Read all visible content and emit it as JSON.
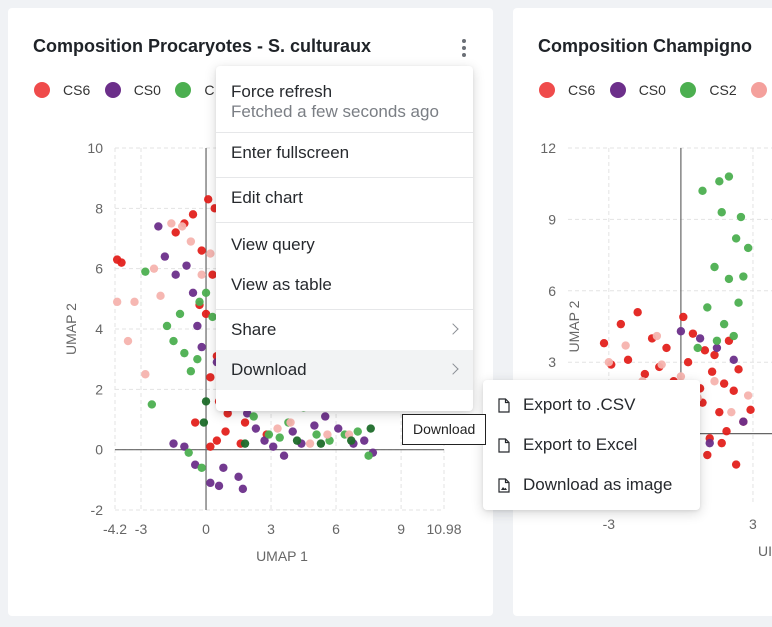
{
  "card1": {
    "title": "Composition Procaryotes - S. culturaux",
    "more_icon": "more-vertical-icon",
    "legend": [
      {
        "label": "CS6",
        "color": "#ef4b4b"
      },
      {
        "label": "CS0",
        "color": "#6c2f8a"
      },
      {
        "label": "C",
        "color": "#4caf50"
      }
    ]
  },
  "card2": {
    "title": "Composition Champigno",
    "legend": [
      {
        "label": "CS6",
        "color": "#ef4b4b"
      },
      {
        "label": "CS0",
        "color": "#6c2f8a"
      },
      {
        "label": "CS2",
        "color": "#4caf50"
      },
      {
        "label": "",
        "color": "#f4a09c"
      }
    ]
  },
  "colors": {
    "red": "#e3211c",
    "light_red": "#f08a86",
    "salmon": "#f6b3ae",
    "purple": "#6c2f8a",
    "green": "#4caf50",
    "light_green": "#9cd39a",
    "dark_green": "#1e6b2a"
  },
  "menu": {
    "force_refresh": "Force refresh",
    "fetched": "Fetched a few seconds ago",
    "fullscreen": "Enter fullscreen",
    "edit_chart": "Edit chart",
    "view_query": "View query",
    "view_table": "View as table",
    "share": "Share",
    "download": "Download"
  },
  "tooltip": "Download",
  "submenu": {
    "csv": "Export to .CSV",
    "excel": "Export to Excel",
    "image": "Download as image",
    "file_icon": "file-icon",
    "image_icon": "file-image-icon"
  },
  "chart_data": [
    {
      "type": "scatter",
      "xlabel": "UMAP 1",
      "ylabel": "UMAP 2",
      "xlim": [
        -4.2,
        10.98
      ],
      "ylim": [
        -2,
        10
      ],
      "x_ticks": [
        "-4.2",
        "-3",
        "0",
        "3",
        "6",
        "9",
        "10.98"
      ],
      "x_tick_values": [
        -4.2,
        -3,
        0,
        3,
        6,
        9,
        10.98
      ],
      "y_ticks": [
        "-2",
        "0",
        "2",
        "4",
        "6",
        "8",
        "10"
      ],
      "y_tick_values": [
        -2,
        0,
        2,
        4,
        6,
        8,
        10
      ],
      "grid": true,
      "series": [
        {
          "name": "CS6",
          "color_key": "red",
          "x": [
            -3.9,
            -4.1,
            -1.0,
            -1.4,
            -0.6,
            0.1,
            0.4,
            -0.2,
            0.3,
            0.0,
            -0.3,
            0.5,
            0.8,
            0.2,
            1.5,
            1.2,
            0.6,
            2.3,
            1.8,
            0.9,
            -0.5,
            1.0,
            0.2,
            0.5,
            2.8,
            1.6
          ],
          "y": [
            6.2,
            6.3,
            7.5,
            7.2,
            7.8,
            8.3,
            8.0,
            6.6,
            5.8,
            4.5,
            4.8,
            3.1,
            2.9,
            2.4,
            2.1,
            1.5,
            1.6,
            1.8,
            0.9,
            0.6,
            0.9,
            1.2,
            0.1,
            0.3,
            0.5,
            0.2
          ]
        },
        {
          "name": "CS0",
          "color_key": "purple",
          "x": [
            -2.2,
            -1.9,
            -1.4,
            -0.9,
            -0.6,
            -0.4,
            -0.2,
            0.5,
            0.9,
            1.1,
            1.3,
            1.9,
            2.3,
            2.7,
            3.1,
            3.6,
            4.0,
            4.4,
            5.0,
            5.5,
            6.1,
            6.8,
            7.3,
            7.7,
            1.5,
            0.8,
            -0.5,
            -1.0,
            -1.5,
            0.2,
            0.6,
            1.7
          ],
          "y": [
            7.4,
            6.4,
            5.8,
            6.1,
            5.2,
            4.1,
            3.4,
            2.9,
            2.2,
            1.4,
            1.9,
            1.2,
            0.7,
            0.3,
            0.1,
            -0.2,
            0.6,
            0.2,
            0.8,
            1.1,
            0.7,
            0.2,
            0.3,
            -0.1,
            -0.9,
            -0.6,
            -0.5,
            0.1,
            0.2,
            -1.1,
            -1.2,
            -1.3
          ]
        },
        {
          "name": "C",
          "color_key": "green",
          "x": [
            -2.8,
            -1.8,
            -1.5,
            -1.2,
            -1.0,
            -0.7,
            -0.4,
            -0.3,
            0.0,
            0.3,
            0.7,
            1.0,
            1.6,
            2.2,
            2.9,
            3.4,
            3.8,
            4.5,
            5.1,
            5.7,
            6.4,
            7.0,
            7.5,
            -2.5,
            -0.2,
            -0.8
          ],
          "y": [
            5.9,
            4.1,
            3.6,
            4.5,
            3.2,
            2.6,
            3.0,
            4.9,
            5.2,
            4.4,
            3.6,
            2.6,
            1.8,
            1.1,
            0.5,
            0.4,
            0.9,
            1.4,
            0.5,
            0.3,
            0.5,
            0.6,
            -0.2,
            1.5,
            -0.6,
            -0.1
          ]
        },
        {
          "name": "",
          "color_key": "salmon",
          "x": [
            -4.1,
            -3.3,
            -2.4,
            -2.1,
            -1.6,
            -1.1,
            -0.7,
            -0.2,
            0.2,
            0.8,
            1.4,
            2.6,
            3.3,
            3.9,
            4.8,
            5.6,
            6.6,
            -3.6,
            -2.8
          ],
          "y": [
            4.9,
            4.9,
            6.0,
            5.1,
            7.5,
            7.4,
            6.9,
            5.8,
            6.5,
            2.7,
            2.4,
            1.7,
            0.7,
            0.9,
            0.2,
            0.5,
            0.5,
            3.6,
            2.5
          ]
        },
        {
          "name": "",
          "color_key": "dark_green",
          "x": [
            0.0,
            -0.1,
            1.8,
            4.2,
            5.3,
            6.7,
            7.6
          ],
          "y": [
            1.6,
            0.9,
            0.2,
            0.3,
            0.2,
            0.3,
            0.7
          ]
        }
      ]
    },
    {
      "type": "scatter",
      "ylabel": "UMAP 2",
      "xlabel": "UI",
      "x_ticks": [
        "-3",
        "3"
      ],
      "x_tick_values": [
        -3,
        3
      ],
      "y_ticks": [
        "3",
        "6",
        "9",
        "12"
      ],
      "y_tick_values": [
        3,
        6,
        9,
        12
      ],
      "xlim": [
        -4.7,
        5.5
      ],
      "ylim": [
        -3,
        12
      ],
      "grid": true,
      "series": [
        {
          "name": "CS6",
          "color_key": "red",
          "x": [
            -3.2,
            -2.5,
            -1.8,
            -1.2,
            -0.6,
            0.1,
            0.5,
            1.0,
            1.4,
            2.0,
            -2.9,
            -2.2,
            -1.5,
            -0.9,
            -0.3,
            0.3,
            0.8,
            1.3,
            1.8,
            2.4,
            -2.6,
            -1.9,
            -1.2,
            -0.5,
            0.2,
            0.9,
            1.6,
            2.2,
            2.9,
            -1.4,
            -0.7,
            0.0,
            0.6,
            1.2,
            1.9,
            2.6,
            0.4,
            1.1,
            1.7,
            2.3
          ],
          "y": [
            3.8,
            4.6,
            5.1,
            4.0,
            3.6,
            4.9,
            4.2,
            3.5,
            3.3,
            3.9,
            2.9,
            3.1,
            2.5,
            2.8,
            2.2,
            3.0,
            1.9,
            2.6,
            2.1,
            2.7,
            1.4,
            1.7,
            1.2,
            1.6,
            1.1,
            1.3,
            0.9,
            1.8,
            1.0,
            0.4,
            0.8,
            0.2,
            0.6,
            -0.2,
            0.1,
            0.5,
            -0.6,
            -0.9,
            -0.4,
            -1.3
          ]
        },
        {
          "name": "CS0",
          "color_key": "purple",
          "x": [
            0.0,
            0.8,
            1.5,
            2.2,
            1.2,
            2.6
          ],
          "y": [
            4.3,
            4.0,
            3.6,
            3.1,
            -0.4,
            0.5
          ]
        },
        {
          "name": "CS2",
          "color_key": "green",
          "x": [
            0.9,
            1.6,
            2.0,
            2.5,
            1.7,
            2.3,
            2.8,
            1.4,
            2.0,
            2.6,
            1.1,
            1.8,
            2.4,
            0.7,
            1.5,
            2.2
          ],
          "y": [
            10.2,
            10.6,
            10.8,
            9.1,
            9.3,
            8.2,
            7.8,
            7.0,
            6.5,
            6.6,
            5.3,
            4.6,
            5.5,
            3.6,
            3.9,
            4.1
          ]
        },
        {
          "name": "",
          "color_key": "salmon",
          "x": [
            -3.0,
            -2.3,
            -1.6,
            -0.8,
            0.0,
            0.7,
            1.4,
            2.1,
            2.8,
            -1.0
          ],
          "y": [
            3.0,
            3.7,
            2.2,
            2.9,
            2.4,
            1.5,
            2.2,
            0.9,
            1.6,
            4.1
          ]
        }
      ]
    }
  ]
}
